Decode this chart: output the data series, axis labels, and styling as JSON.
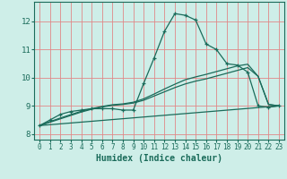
{
  "title": "",
  "xlabel": "Humidex (Indice chaleur)",
  "ylabel": "",
  "background_color": "#ceeee8",
  "grid_color": "#e08888",
  "line_color": "#1a6b5a",
  "xlim": [
    -0.5,
    23.5
  ],
  "ylim": [
    7.8,
    12.7
  ],
  "xticks": [
    0,
    1,
    2,
    3,
    4,
    5,
    6,
    7,
    8,
    9,
    10,
    11,
    12,
    13,
    14,
    15,
    16,
    17,
    18,
    19,
    20,
    21,
    22,
    23
  ],
  "yticks": [
    8,
    9,
    10,
    11,
    12
  ],
  "line1_x": [
    0,
    1,
    2,
    3,
    4,
    5,
    6,
    7,
    8,
    9,
    10,
    11,
    12,
    13,
    14,
    15,
    16,
    17,
    18,
    19,
    20,
    21,
    22,
    23
  ],
  "line1_y": [
    8.3,
    8.5,
    8.7,
    8.8,
    8.85,
    8.9,
    8.9,
    8.9,
    8.85,
    8.85,
    9.8,
    10.7,
    11.65,
    12.28,
    12.22,
    12.05,
    11.2,
    11.0,
    10.5,
    10.45,
    10.2,
    9.0,
    8.95,
    9.0
  ],
  "line2_x": [
    0,
    1,
    2,
    3,
    4,
    5,
    6,
    7,
    8,
    9,
    10,
    11,
    12,
    13,
    14,
    15,
    16,
    17,
    18,
    19,
    20,
    21,
    22,
    23
  ],
  "line2_y": [
    8.3,
    8.42,
    8.54,
    8.66,
    8.78,
    8.88,
    8.96,
    9.02,
    9.05,
    9.1,
    9.2,
    9.35,
    9.5,
    9.65,
    9.78,
    9.88,
    9.96,
    10.06,
    10.16,
    10.26,
    10.36,
    10.05,
    9.05,
    9.0
  ],
  "line3_x": [
    0,
    1,
    2,
    3,
    4,
    5,
    6,
    7,
    8,
    9,
    10,
    11,
    12,
    13,
    14,
    15,
    16,
    17,
    18,
    19,
    20,
    21,
    22,
    23
  ],
  "line3_y": [
    8.3,
    8.44,
    8.57,
    8.69,
    8.81,
    8.9,
    8.98,
    9.04,
    9.07,
    9.13,
    9.25,
    9.42,
    9.6,
    9.77,
    9.93,
    10.03,
    10.12,
    10.22,
    10.32,
    10.42,
    10.48,
    10.05,
    9.05,
    9.0
  ],
  "line4_x": [
    0,
    23
  ],
  "line4_y": [
    8.3,
    9.0
  ]
}
